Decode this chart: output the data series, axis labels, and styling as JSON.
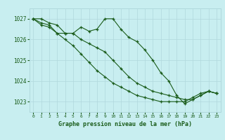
{
  "bg_color": "#c8eef0",
  "grid_color": "#b0d8dc",
  "line_color": "#1a5c1a",
  "marker_color": "#1a5c1a",
  "title": "Graphe pression niveau de la mer (hPa)",
  "title_color": "#1a5c1a",
  "ylim": [
    1022.5,
    1027.5
  ],
  "yticks": [
    1023,
    1024,
    1025,
    1026,
    1027
  ],
  "xlim": [
    -0.5,
    23.5
  ],
  "xticks": [
    0,
    1,
    2,
    3,
    4,
    5,
    6,
    7,
    8,
    9,
    10,
    11,
    12,
    13,
    14,
    15,
    16,
    17,
    18,
    19,
    20,
    21,
    22,
    23
  ],
  "series": [
    [
      1027.0,
      1027.0,
      1026.8,
      1026.7,
      1026.3,
      1026.3,
      1026.6,
      1026.4,
      1026.5,
      1027.0,
      1027.0,
      1026.5,
      1026.1,
      1025.9,
      1025.5,
      1025.0,
      1024.4,
      1024.0,
      1023.3,
      1022.9,
      1023.1,
      1023.3,
      1023.5,
      1023.4
    ],
    [
      1027.0,
      1026.7,
      1026.6,
      1026.3,
      1026.0,
      1025.7,
      1025.3,
      1024.9,
      1024.5,
      1024.2,
      1023.9,
      1023.7,
      1023.5,
      1023.3,
      1023.2,
      1023.1,
      1023.0,
      1023.0,
      1023.0,
      1023.0,
      1023.2,
      1023.4,
      1023.5,
      1023.4
    ],
    [
      1027.0,
      1026.8,
      1026.7,
      1026.3,
      1026.3,
      1026.3,
      1026.0,
      1025.8,
      1025.6,
      1025.4,
      1025.0,
      1024.6,
      1024.2,
      1023.9,
      1023.7,
      1023.5,
      1023.4,
      1023.3,
      1023.2,
      1023.1,
      1023.1,
      1023.3,
      1023.5,
      1023.4
    ]
  ]
}
